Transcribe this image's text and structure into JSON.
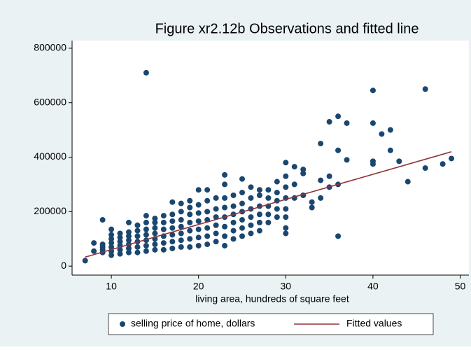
{
  "chart_data": {
    "type": "scatter",
    "title": "Figure xr2.12b Observations and fitted line",
    "x_label": "living area, hundreds of square feet",
    "xlim": [
      5.5,
      51
    ],
    "xticks": [
      10,
      20,
      30,
      40,
      50
    ],
    "ylim": [
      -33000,
      828000
    ],
    "yticks": [
      0,
      200000,
      400000,
      600000,
      800000
    ],
    "grid": false,
    "legend": "bottom",
    "series": [
      {
        "name": "selling price of home, dollars",
        "color": "#1a476f",
        "type": "scatter",
        "x": [
          7,
          8,
          8,
          9,
          9,
          9,
          9,
          9,
          10,
          10,
          10,
          10,
          10,
          10,
          10,
          11,
          11,
          11,
          11,
          11,
          11,
          12,
          12,
          12,
          12,
          12,
          12,
          12,
          13,
          13,
          13,
          13,
          13,
          13,
          14,
          14,
          14,
          14,
          14,
          14,
          14,
          14,
          15,
          15,
          15,
          15,
          15,
          15,
          15,
          16,
          16,
          16,
          16,
          16,
          16,
          17,
          17,
          17,
          17,
          17,
          17,
          17,
          18,
          18,
          18,
          18,
          18,
          18,
          18,
          19,
          19,
          19,
          19,
          19,
          19,
          19,
          20,
          20,
          20,
          20,
          20,
          20,
          20,
          21,
          21,
          21,
          21,
          21,
          21,
          21,
          22,
          22,
          22,
          22,
          22,
          22,
          23,
          23,
          23,
          23,
          23,
          23,
          23,
          23,
          24,
          24,
          24,
          24,
          24,
          24,
          25,
          25,
          25,
          25,
          25,
          25,
          25,
          26,
          26,
          26,
          26,
          26,
          26,
          27,
          27,
          27,
          27,
          27,
          27,
          28,
          28,
          28,
          28,
          28,
          29,
          29,
          29,
          29,
          29,
          30,
          30,
          30,
          30,
          30,
          30,
          30,
          30,
          31,
          31,
          31,
          32,
          32,
          32,
          33,
          33,
          34,
          34,
          34,
          35,
          35,
          35,
          36,
          36,
          36,
          36,
          37,
          37,
          40,
          40,
          40,
          40,
          41,
          42,
          42,
          43,
          44,
          46,
          46,
          48,
          49
        ],
        "values": [
          20000,
          55000,
          85000,
          50000,
          60000,
          70000,
          80000,
          170000,
          40000,
          55000,
          70000,
          85000,
          100000,
          115000,
          135000,
          45000,
          60000,
          75000,
          90000,
          105000,
          120000,
          50000,
          65000,
          80000,
          95000,
          110000,
          125000,
          160000,
          50000,
          70000,
          90000,
          110000,
          130000,
          150000,
          55000,
          75000,
          95000,
          115000,
          135000,
          160000,
          185000,
          710000,
          60000,
          80000,
          100000,
          120000,
          140000,
          160000,
          175000,
          60000,
          85000,
          110000,
          135000,
          160000,
          185000,
          65000,
          90000,
          115000,
          140000,
          165000,
          190000,
          235000,
          70000,
          95000,
          120000,
          145000,
          170000,
          200000,
          230000,
          70000,
          100000,
          130000,
          160000,
          190000,
          215000,
          240000,
          75000,
          105000,
          135000,
          165000,
          195000,
          225000,
          280000,
          80000,
          110000,
          140000,
          170000,
          200000,
          240000,
          280000,
          90000,
          120000,
          150000,
          180000,
          210000,
          250000,
          75000,
          110000,
          145000,
          180000,
          215000,
          250000,
          300000,
          335000,
          100000,
          130000,
          160000,
          190000,
          220000,
          260000,
          110000,
          140000,
          170000,
          200000,
          230000,
          270000,
          320000,
          120000,
          150000,
          180000,
          210000,
          250000,
          290000,
          130000,
          160000,
          190000,
          220000,
          260000,
          280000,
          160000,
          190000,
          220000,
          250000,
          280000,
          180000,
          210000,
          240000,
          270000,
          310000,
          120000,
          140000,
          180000,
          210000,
          250000,
          290000,
          330000,
          380000,
          250000,
          300000,
          365000,
          260000,
          340000,
          355000,
          215000,
          235000,
          250000,
          315000,
          450000,
          290000,
          330000,
          530000,
          110000,
          300000,
          425000,
          550000,
          390000,
          525000,
          375000,
          385000,
          525000,
          645000,
          485000,
          425000,
          500000,
          385000,
          310000,
          360000,
          650000,
          375000,
          395000
        ]
      },
      {
        "name": "Fitted values",
        "color": "#90353b",
        "type": "line",
        "x": [
          7,
          49
        ],
        "values": [
          33000,
          420000
        ]
      }
    ]
  }
}
